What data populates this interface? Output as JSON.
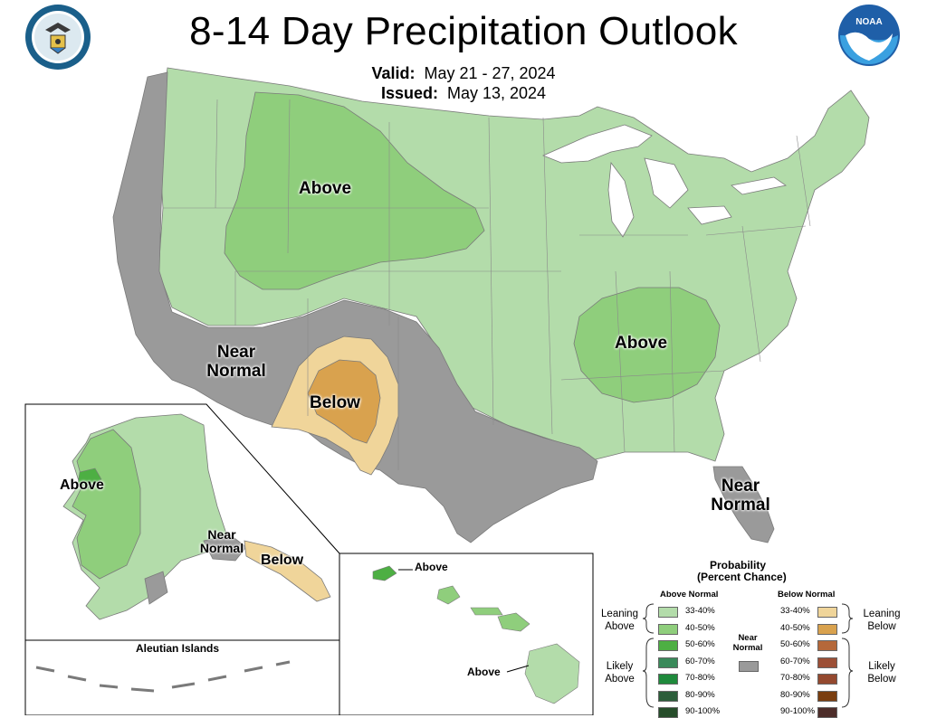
{
  "title": "8-14 Day Precipitation Outlook",
  "valid_label": "Valid:",
  "valid_dates": "May 21 - 27, 2024",
  "issued_label": "Issued:",
  "issued_date": "May 13, 2024",
  "noaa_logo_text": "NOAA",
  "map_labels": {
    "above_nw": "Above",
    "near_normal_sw_1": "Near",
    "near_normal_sw_2": "Normal",
    "below_sw": "Below",
    "above_se": "Above",
    "near_normal_fl_1": "Near",
    "near_normal_fl_2": "Normal",
    "ak_above": "Above",
    "ak_near_1": "Near",
    "ak_near_2": "Normal",
    "ak_below": "Below",
    "aleutian": "Aleutian Islands",
    "hi_above_1": "Above",
    "hi_above_2": "Above"
  },
  "legend": {
    "title_1": "Probability",
    "title_2": "(Percent Chance)",
    "above_header": "Above Normal",
    "below_header": "Below Normal",
    "near_normal_1": "Near",
    "near_normal_2": "Normal",
    "leaning_above_1": "Leaning",
    "leaning_above_2": "Above",
    "likely_above_1": "Likely",
    "likely_above_2": "Above",
    "leaning_below_1": "Leaning",
    "leaning_below_2": "Below",
    "likely_below_1": "Likely",
    "likely_below_2": "Below",
    "above_items": [
      {
        "label": "33-40%",
        "color": "#b3dcaa"
      },
      {
        "label": "40-50%",
        "color": "#8fce7c"
      },
      {
        "label": "50-60%",
        "color": "#4daf43"
      },
      {
        "label": "60-70%",
        "color": "#3a8a5a"
      },
      {
        "label": "70-80%",
        "color": "#1f8a3c"
      },
      {
        "label": "80-90%",
        "color": "#2c5e3a"
      },
      {
        "label": "90-100%",
        "color": "#264d2a"
      }
    ],
    "below_items": [
      {
        "label": "33-40%",
        "color": "#f0d59a"
      },
      {
        "label": "40-50%",
        "color": "#d9a24e"
      },
      {
        "label": "50-60%",
        "color": "#b5683a"
      },
      {
        "label": "60-70%",
        "color": "#9c4f36"
      },
      {
        "label": "70-80%",
        "color": "#94492f"
      },
      {
        "label": "80-90%",
        "color": "#7a3e10"
      },
      {
        "label": "90-100%",
        "color": "#4d2d2a"
      }
    ],
    "near_normal_color": "#9a9a9a"
  },
  "colors": {
    "near_normal": "#9a9a9a",
    "leaning_above": "#b3dcaa",
    "above_40_50": "#8fce7c",
    "above_50_60": "#4daf43",
    "leaning_below": "#f0d59a",
    "below_40_50": "#d9a24e"
  }
}
